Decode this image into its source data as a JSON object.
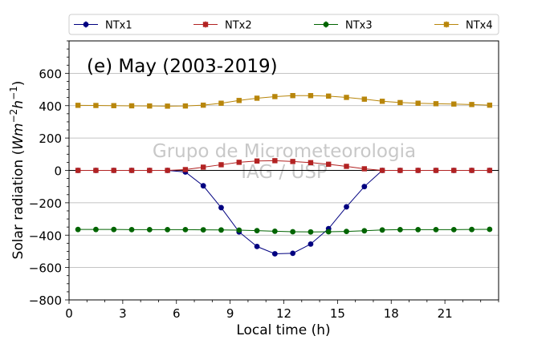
{
  "chart_data": {
    "type": "line",
    "title": "(e) May (2003-2019)",
    "watermark": [
      "Grupo de Micrometeorologia",
      "IAG / USP"
    ],
    "xlabel": "Local time (h)",
    "ylabel_main": "Solar radiation (",
    "ylabel_unit": "Wm",
    "ylabel_exp1": "−2",
    "ylabel_h": "h",
    "ylabel_exp2": "−1",
    "ylabel_close": ")",
    "xlim": [
      0,
      24
    ],
    "ylim": [
      -800,
      800
    ],
    "xticks": [
      0,
      3,
      6,
      9,
      12,
      15,
      18,
      21
    ],
    "yticks": [
      -800,
      -600,
      -400,
      -200,
      0,
      200,
      400,
      600
    ],
    "grid": "horizontal",
    "legend_position": "top",
    "x": [
      0.5,
      1.5,
      2.5,
      3.5,
      4.5,
      5.5,
      6.5,
      7.5,
      8.5,
      9.5,
      10.5,
      11.5,
      12.5,
      13.5,
      14.5,
      15.5,
      16.5,
      17.5,
      18.5,
      19.5,
      20.5,
      21.5,
      22.5,
      23.5
    ],
    "series": [
      {
        "name": "NTx1",
        "color": "#000080",
        "marker": "circle",
        "values": [
          0,
          0,
          0,
          0,
          0,
          0,
          -10,
          -95,
          -230,
          -380,
          -470,
          -515,
          -512,
          -455,
          -360,
          -225,
          -100,
          0,
          0,
          0,
          0,
          0,
          0,
          0
        ]
      },
      {
        "name": "NTx2",
        "color": "#b22222",
        "marker": "square",
        "values": [
          0,
          0,
          0,
          0,
          0,
          0,
          5,
          20,
          35,
          50,
          58,
          60,
          55,
          48,
          38,
          25,
          10,
          0,
          0,
          0,
          0,
          0,
          0,
          0
        ]
      },
      {
        "name": "NTx3",
        "color": "#006400",
        "marker": "circle",
        "values": [
          -365,
          -365,
          -365,
          -366,
          -366,
          -366,
          -366,
          -367,
          -368,
          -369,
          -372,
          -376,
          -379,
          -380,
          -379,
          -377,
          -373,
          -368,
          -366,
          -366,
          -366,
          -366,
          -365,
          -364
        ]
      },
      {
        "name": "NTx4",
        "color": "#b8860b",
        "marker": "square",
        "values": [
          402,
          401,
          400,
          399,
          398,
          397,
          398,
          403,
          415,
          432,
          446,
          456,
          462,
          462,
          459,
          451,
          440,
          427,
          419,
          415,
          412,
          410,
          407,
          403
        ]
      }
    ]
  }
}
